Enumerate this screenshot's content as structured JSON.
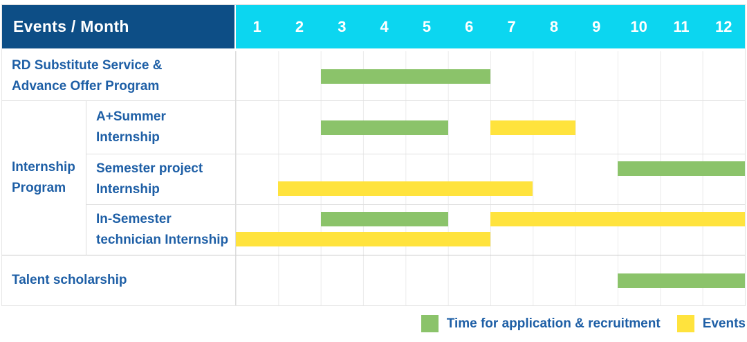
{
  "header": {
    "row_label": "Events / Month"
  },
  "colors": {
    "header_bg": "#0D4E86",
    "months_bg": "#0CD6F0",
    "header_text": "#FFFFFF",
    "label_text": "#1E5FA6",
    "application_bar": "#8BC36A",
    "event_bar": "#FFE33D"
  },
  "legend": {
    "items": [
      {
        "key": "application",
        "label": "Time for application & recruitment",
        "color": "#8BC36A"
      },
      {
        "key": "event",
        "label": "Events",
        "color": "#FFE33D"
      }
    ]
  },
  "chart_data": {
    "type": "gantt",
    "x_unit": "month",
    "months": [
      "1",
      "2",
      "3",
      "4",
      "5",
      "6",
      "7",
      "8",
      "9",
      "10",
      "11",
      "12"
    ],
    "series": [
      {
        "key": "application",
        "name": "Time for application & recruitment",
        "color": "#8BC36A"
      },
      {
        "key": "event",
        "name": "Events",
        "color": "#FFE33D"
      }
    ],
    "group_label": "Internship Program",
    "group_label_lines": [
      "Internship",
      "Program"
    ],
    "rows": [
      {
        "group": "",
        "label": "RD Substitute Service & Advance Offer Program",
        "label_lines": [
          "RD Substitute Service &",
          "Advance Offer Program"
        ],
        "bars": [
          {
            "series": "application",
            "start_month": 3,
            "end_month": 6,
            "track": "single"
          }
        ]
      },
      {
        "group": "Internship Program",
        "label": "A+Summer Internship",
        "label_lines": [
          "A+Summer",
          "Internship"
        ],
        "bars": [
          {
            "series": "application",
            "start_month": 3,
            "end_month": 5,
            "track": "single"
          },
          {
            "series": "event",
            "start_month": 7,
            "end_month": 8,
            "track": "single"
          }
        ]
      },
      {
        "group": "Internship Program",
        "label": "Semester project Internship",
        "label_lines": [
          "Semester project",
          "Internship"
        ],
        "bars": [
          {
            "series": "application",
            "start_month": 10,
            "end_month": 12,
            "track": "top"
          },
          {
            "series": "event",
            "start_month": 2,
            "end_month": 7,
            "track": "bottom"
          }
        ]
      },
      {
        "group": "Internship Program",
        "label": "In-Semester technician Internship",
        "label_lines": [
          "In-Semester",
          "technician Internship"
        ],
        "bars": [
          {
            "series": "application",
            "start_month": 3,
            "end_month": 5,
            "track": "top"
          },
          {
            "series": "event",
            "start_month": 7,
            "end_month": 12,
            "track": "top"
          },
          {
            "series": "event",
            "start_month": 1,
            "end_month": 6,
            "track": "bottom"
          }
        ]
      },
      {
        "group": "",
        "label": "Talent scholarship",
        "label_lines": [
          "Talent scholarship"
        ],
        "bars": [
          {
            "series": "application",
            "start_month": 10,
            "end_month": 12,
            "track": "single"
          }
        ]
      }
    ]
  }
}
